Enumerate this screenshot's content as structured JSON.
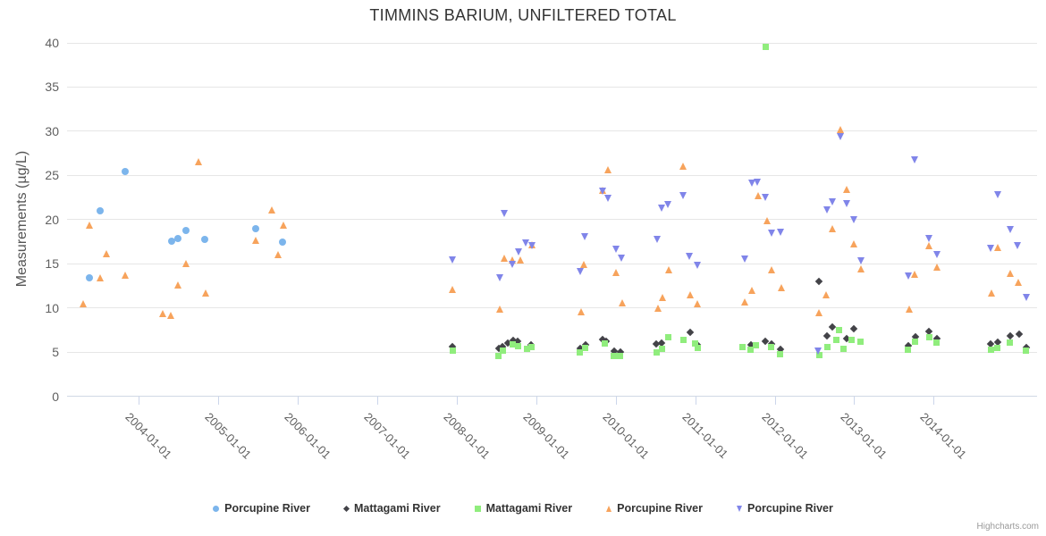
{
  "header": {
    "title": "TIMMINS BARIUM, UNFILTERED TOTAL"
  },
  "credits": {
    "label": "Highcharts.com"
  },
  "chart_data": {
    "type": "scatter",
    "title": "TIMMINS BARIUM, UNFILTERED TOTAL",
    "xlabel": "",
    "ylabel": "Measurements (µg/L)",
    "ylim": [
      0,
      40
    ],
    "yticks": [
      0,
      5,
      10,
      15,
      20,
      25,
      30,
      35,
      40
    ],
    "x_range_years": [
      2003.1,
      2015.3
    ],
    "xticks": [
      {
        "year": 2004,
        "label": "2004-01-01"
      },
      {
        "year": 2005,
        "label": "2005-01-01"
      },
      {
        "year": 2006,
        "label": "2006-01-01"
      },
      {
        "year": 2007,
        "label": "2007-01-01"
      },
      {
        "year": 2008,
        "label": "2008-01-01"
      },
      {
        "year": 2009,
        "label": "2009-01-01"
      },
      {
        "year": 2010,
        "label": "2010-01-01"
      },
      {
        "year": 2011,
        "label": "2011-01-01"
      },
      {
        "year": 2012,
        "label": "2012-01-01"
      },
      {
        "year": 2013,
        "label": "2013-01-01"
      },
      {
        "year": 2014,
        "label": "2014-01-01"
      }
    ],
    "grid": "horizontal-only",
    "legend_position": "bottom-center",
    "series": [
      {
        "name": "Porcupine River",
        "marker": "circle",
        "color": "#7cb5ec",
        "points": [
          [
            2003.38,
            13.4
          ],
          [
            2003.52,
            21.0
          ],
          [
            2003.83,
            25.4
          ],
          [
            2004.41,
            17.5
          ],
          [
            2004.49,
            17.9
          ],
          [
            2004.59,
            18.8
          ],
          [
            2004.83,
            17.8
          ],
          [
            2005.47,
            19.0
          ],
          [
            2005.81,
            17.4
          ]
        ]
      },
      {
        "name": "Mattagami River",
        "marker": "diamond",
        "color": "#434348",
        "points": [
          [
            2007.95,
            5.6
          ],
          [
            2008.53,
            5.4
          ],
          [
            2008.58,
            5.6
          ],
          [
            2008.64,
            6.0
          ],
          [
            2008.71,
            6.3
          ],
          [
            2008.77,
            6.2
          ],
          [
            2008.94,
            5.8
          ],
          [
            2009.55,
            5.4
          ],
          [
            2009.62,
            5.8
          ],
          [
            2009.84,
            6.4
          ],
          [
            2009.88,
            6.2
          ],
          [
            2009.98,
            5.1
          ],
          [
            2010.06,
            5.0
          ],
          [
            2010.51,
            5.9
          ],
          [
            2010.58,
            6.0
          ],
          [
            2010.94,
            7.2
          ],
          [
            2011.03,
            5.8
          ],
          [
            2011.7,
            5.8
          ],
          [
            2011.88,
            6.2
          ],
          [
            2011.96,
            5.9
          ],
          [
            2012.07,
            5.3
          ],
          [
            2012.56,
            13.0
          ],
          [
            2012.66,
            6.8
          ],
          [
            2012.72,
            7.8
          ],
          [
            2012.9,
            6.5
          ],
          [
            2012.99,
            7.6
          ],
          [
            2013.68,
            5.7
          ],
          [
            2013.77,
            6.7
          ],
          [
            2013.94,
            7.3
          ],
          [
            2014.04,
            6.5
          ],
          [
            2014.72,
            5.9
          ],
          [
            2014.8,
            6.1
          ],
          [
            2014.96,
            6.8
          ],
          [
            2015.07,
            7.0
          ],
          [
            2015.16,
            5.5
          ]
        ]
      },
      {
        "name": "Mattagami River",
        "marker": "square",
        "color": "#90ed7d",
        "points": [
          [
            2007.95,
            5.2
          ],
          [
            2008.53,
            4.6
          ],
          [
            2008.58,
            5.2
          ],
          [
            2008.71,
            5.9
          ],
          [
            2008.77,
            5.7
          ],
          [
            2008.88,
            5.4
          ],
          [
            2008.94,
            5.6
          ],
          [
            2009.55,
            5.0
          ],
          [
            2009.62,
            5.5
          ],
          [
            2009.86,
            6.0
          ],
          [
            2009.98,
            4.6
          ],
          [
            2010.06,
            4.6
          ],
          [
            2010.51,
            5.0
          ],
          [
            2010.58,
            5.4
          ],
          [
            2010.66,
            6.7
          ],
          [
            2010.85,
            6.4
          ],
          [
            2011.0,
            6.0
          ],
          [
            2011.03,
            5.5
          ],
          [
            2011.6,
            5.6
          ],
          [
            2011.7,
            5.3
          ],
          [
            2011.76,
            5.8
          ],
          [
            2011.89,
            39.5
          ],
          [
            2011.96,
            5.6
          ],
          [
            2012.07,
            4.8
          ],
          [
            2012.56,
            4.7
          ],
          [
            2012.66,
            5.6
          ],
          [
            2012.78,
            6.4
          ],
          [
            2012.81,
            7.5
          ],
          [
            2012.87,
            5.4
          ],
          [
            2012.97,
            6.4
          ],
          [
            2013.08,
            6.2
          ],
          [
            2013.68,
            5.3
          ],
          [
            2013.77,
            6.2
          ],
          [
            2013.94,
            6.7
          ],
          [
            2014.04,
            6.1
          ],
          [
            2014.72,
            5.3
          ],
          [
            2014.8,
            5.5
          ],
          [
            2014.96,
            6.1
          ],
          [
            2015.16,
            5.2
          ]
        ]
      },
      {
        "name": "Porcupine River",
        "marker": "triangle-up",
        "color": "#f7a35c",
        "points": [
          [
            2003.3,
            10.4
          ],
          [
            2003.38,
            19.3
          ],
          [
            2003.52,
            13.3
          ],
          [
            2003.6,
            16.1
          ],
          [
            2003.83,
            13.7
          ],
          [
            2004.3,
            9.3
          ],
          [
            2004.4,
            9.1
          ],
          [
            2004.49,
            12.5
          ],
          [
            2004.6,
            15.0
          ],
          [
            2004.75,
            26.5
          ],
          [
            2004.84,
            11.6
          ],
          [
            2005.47,
            17.6
          ],
          [
            2005.67,
            21.0
          ],
          [
            2005.75,
            16.0
          ],
          [
            2005.82,
            19.3
          ],
          [
            2007.95,
            12.0
          ],
          [
            2008.54,
            9.8
          ],
          [
            2008.6,
            15.6
          ],
          [
            2008.7,
            15.4
          ],
          [
            2008.8,
            15.4
          ],
          [
            2008.95,
            17.1
          ],
          [
            2009.56,
            9.5
          ],
          [
            2009.6,
            14.9
          ],
          [
            2009.84,
            23.3
          ],
          [
            2009.9,
            25.6
          ],
          [
            2010.0,
            14.0
          ],
          [
            2010.08,
            10.5
          ],
          [
            2010.53,
            9.9
          ],
          [
            2010.59,
            11.1
          ],
          [
            2010.67,
            14.3
          ],
          [
            2010.85,
            26.0
          ],
          [
            2010.94,
            11.4
          ],
          [
            2011.03,
            10.4
          ],
          [
            2011.62,
            10.6
          ],
          [
            2011.71,
            11.9
          ],
          [
            2011.79,
            22.7
          ],
          [
            2011.9,
            19.8
          ],
          [
            2011.96,
            14.3
          ],
          [
            2012.08,
            12.2
          ],
          [
            2012.56,
            9.4
          ],
          [
            2012.65,
            11.4
          ],
          [
            2012.73,
            18.9
          ],
          [
            2012.83,
            30.1
          ],
          [
            2012.9,
            23.4
          ],
          [
            2013.0,
            17.2
          ],
          [
            2013.08,
            14.4
          ],
          [
            2013.69,
            9.8
          ],
          [
            2013.76,
            13.8
          ],
          [
            2013.94,
            17.0
          ],
          [
            2014.04,
            14.6
          ],
          [
            2014.73,
            11.6
          ],
          [
            2014.8,
            16.8
          ],
          [
            2014.96,
            13.9
          ],
          [
            2015.06,
            12.8
          ]
        ]
      },
      {
        "name": "Porcupine River",
        "marker": "triangle-down",
        "color": "#8085e9",
        "points": [
          [
            2007.95,
            15.5
          ],
          [
            2008.54,
            13.5
          ],
          [
            2008.6,
            20.7
          ],
          [
            2008.7,
            15.0
          ],
          [
            2008.78,
            16.4
          ],
          [
            2008.87,
            17.4
          ],
          [
            2008.95,
            17.1
          ],
          [
            2009.55,
            14.2
          ],
          [
            2009.61,
            18.1
          ],
          [
            2009.84,
            23.3
          ],
          [
            2009.9,
            22.5
          ],
          [
            2010.0,
            16.7
          ],
          [
            2010.07,
            15.7
          ],
          [
            2010.52,
            17.8
          ],
          [
            2010.58,
            21.3
          ],
          [
            2010.66,
            21.7
          ],
          [
            2010.85,
            22.8
          ],
          [
            2010.93,
            15.9
          ],
          [
            2011.03,
            14.9
          ],
          [
            2011.62,
            15.6
          ],
          [
            2011.71,
            24.2
          ],
          [
            2011.78,
            24.3
          ],
          [
            2011.88,
            22.6
          ],
          [
            2011.96,
            18.5
          ],
          [
            2012.07,
            18.6
          ],
          [
            2012.55,
            5.2
          ],
          [
            2012.66,
            21.1
          ],
          [
            2012.73,
            22.0
          ],
          [
            2012.83,
            29.4
          ],
          [
            2012.9,
            21.8
          ],
          [
            2013.0,
            20.0
          ],
          [
            2013.08,
            15.4
          ],
          [
            2013.68,
            13.7
          ],
          [
            2013.76,
            26.8
          ],
          [
            2013.94,
            17.9
          ],
          [
            2014.04,
            16.1
          ],
          [
            2014.72,
            16.8
          ],
          [
            2014.8,
            22.9
          ],
          [
            2014.96,
            18.9
          ],
          [
            2015.05,
            17.1
          ],
          [
            2015.16,
            11.2
          ]
        ]
      }
    ]
  }
}
